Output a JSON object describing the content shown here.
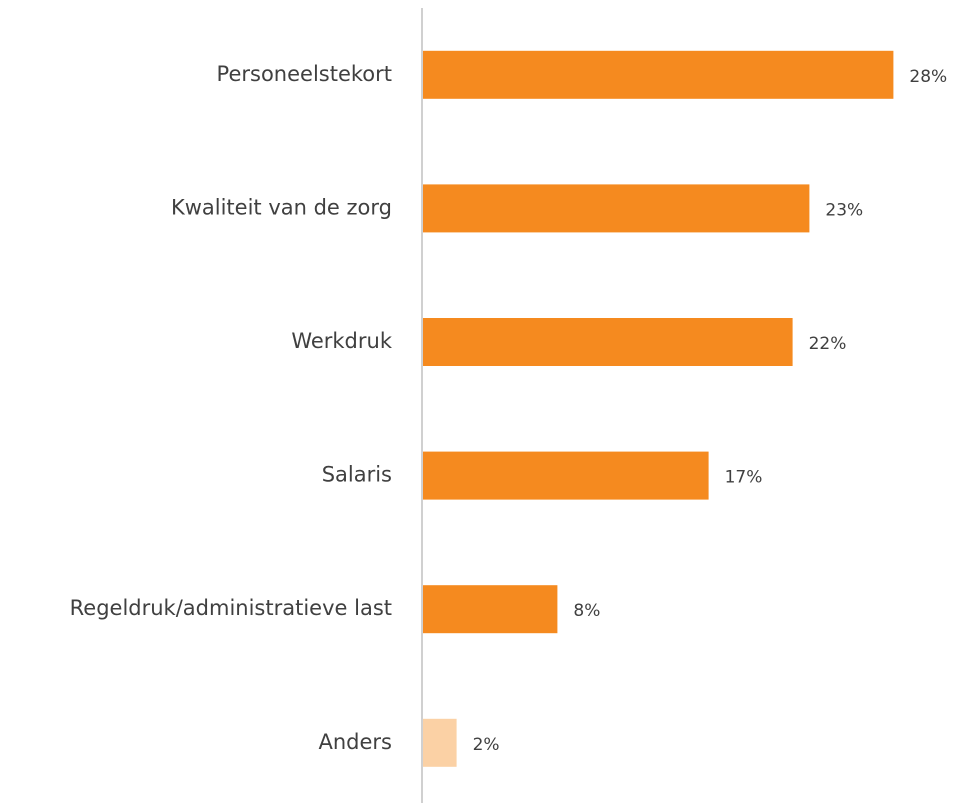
{
  "chart_data": {
    "type": "barh",
    "categories": [
      "Personeelstekort",
      "Kwaliteit van de zorg",
      "Werkdruk",
      "Salaris",
      "Regeldruk/administratieve last",
      "Anders"
    ],
    "values": [
      28,
      23,
      22,
      17,
      8,
      2
    ],
    "value_labels": [
      "28%",
      "23%",
      "22%",
      "17%",
      "8%",
      "2%"
    ],
    "colors": [
      "#f58a1f",
      "#f58a1f",
      "#f58a1f",
      "#f58a1f",
      "#f58a1f",
      "#fbd1a5"
    ]
  }
}
